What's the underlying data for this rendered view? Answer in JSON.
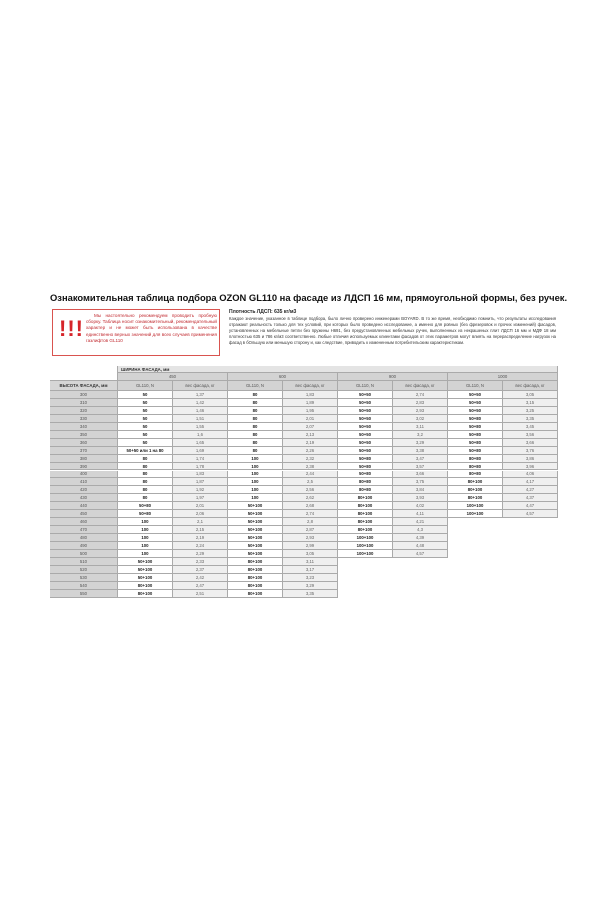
{
  "title": "Ознакомительная таблица подбора OZON GL110 на фасаде из ЛДСП 16 мм, прямоугольной формы, без ручек.",
  "warning": {
    "icon": "exclamation-marks",
    "marks": "!!!",
    "text": "Мы настоятельно рекомендуем проводить пробную сборку. Таблица носит ознакомительный, рекомендательный характер и не может быть использована в качестве единственно верных значений для всех случаев применения газлифтов GL110",
    "color": "#d6242a"
  },
  "density": "Плотность ЛДСП: 635 кг/м3",
  "paragraph": "Каждое значение, указанное в таблице подбора, было лично проверено инженерами BOYARD. В то же время, необходимо помнить, что результаты исследования отражают реальность только для тех условий, при которых было проведено исследование, а именно для ровных (без фрезеровок и прочих изменений) фасадов, установленных на мебельные петли без пружины H691, без предустановленных мебельных ручек, выполненных из некрашеных плит ЛДСП 16 мм и МДФ 18 мм плотностью 635 и 786 кг/м3 соответственно. Любые отличия используемых клиентами фасадов от этих параметров могут влиять на перераспределение нагрузок на фасад в бОльшую или меньшую сторону и, как следствие, приводить к измененным потребительским характеристикам.",
  "table": {
    "width_header": "ШИРИНА ФАСАДА, мм",
    "height_header": "ВЫСОТА ФАСАДА, мм",
    "gl_header": "GL110, N",
    "weight_header": "вес фасада, кг",
    "heights": [
      "300",
      "310",
      "320",
      "330",
      "340",
      "350",
      "360",
      "370",
      "380",
      "390",
      "400",
      "410",
      "420",
      "430",
      "440",
      "450",
      "460",
      "470",
      "480",
      "490",
      "500",
      "510",
      "520",
      "530",
      "540",
      "550"
    ],
    "groups": [
      {
        "width": "450",
        "gl": [
          "50",
          "50",
          "50",
          "50",
          "50",
          "50",
          "50",
          "50+50 или 1 на 80",
          "80",
          "80",
          "80",
          "80",
          "80",
          "80",
          "50+80",
          "50+80",
          "100",
          "100",
          "100",
          "100",
          "100",
          "50+100",
          "50+100",
          "50+100",
          "80+100",
          "80+100"
        ],
        "weight": [
          "1,37",
          "1,42",
          "1,46",
          "1,51",
          "1,55",
          "1,6",
          "1,65",
          "1,69",
          "1,74",
          "1,78",
          "1,83",
          "1,87",
          "1,92",
          "1,97",
          "2,01",
          "2,06",
          "2,1",
          "2,15",
          "2,19",
          "2,24",
          "2,29",
          "2,33",
          "2,37",
          "2,42",
          "2,47",
          "2,51"
        ]
      },
      {
        "width": "600",
        "gl": [
          "80",
          "80",
          "80",
          "80",
          "80",
          "80",
          "80",
          "80",
          "100",
          "100",
          "100",
          "100",
          "100",
          "100",
          "50+100",
          "50+100",
          "50+100",
          "50+100",
          "50+100",
          "50+100",
          "50+100",
          "80+100",
          "80+100",
          "80+100",
          "80+100",
          "80+100"
        ],
        "weight": [
          "1,83",
          "1,89",
          "1,95",
          "2,01",
          "2,07",
          "2,13",
          "2,19",
          "2,26",
          "2,32",
          "2,38",
          "2,44",
          "2,5",
          "2,56",
          "2,62",
          "2,68",
          "2,74",
          "2,8",
          "2,87",
          "2,93",
          "2,99",
          "3,05",
          "3,11",
          "3,17",
          "3,23",
          "3,29",
          "3,35"
        ]
      },
      {
        "width": "900",
        "gl": [
          "50+50",
          "50+50",
          "50+50",
          "50+50",
          "50+50",
          "50+50",
          "50+50",
          "50+50",
          "50+80",
          "50+80",
          "50+80",
          "80+80",
          "80+80",
          "80+100",
          "80+100",
          "80+100",
          "80+100",
          "80+100",
          "100+100",
          "100+100",
          "100+100"
        ],
        "weight": [
          "2,74",
          "2,83",
          "2,93",
          "3,02",
          "3,11",
          "3,2",
          "3,29",
          "3,38",
          "3,47",
          "3,57",
          "3,66",
          "3,75",
          "3,84",
          "3,93",
          "4,02",
          "4,11",
          "4,21",
          "4,3",
          "4,39",
          "4,48",
          "4,57"
        ]
      },
      {
        "width": "1000",
        "gl": [
          "50+50",
          "50+50",
          "50+50",
          "50+80",
          "50+80",
          "50+80",
          "50+80",
          "50+80",
          "80+80",
          "80+80",
          "80+80",
          "80+100",
          "80+100",
          "80+100",
          "100+100",
          "100+100"
        ],
        "weight": [
          "3,05",
          "3,15",
          "3,25",
          "3,35",
          "3,45",
          "3,56",
          "3,66",
          "3,76",
          "3,86",
          "3,96",
          "4,06",
          "4,17",
          "4,27",
          "4,37",
          "4,47",
          "4,57"
        ]
      }
    ]
  }
}
